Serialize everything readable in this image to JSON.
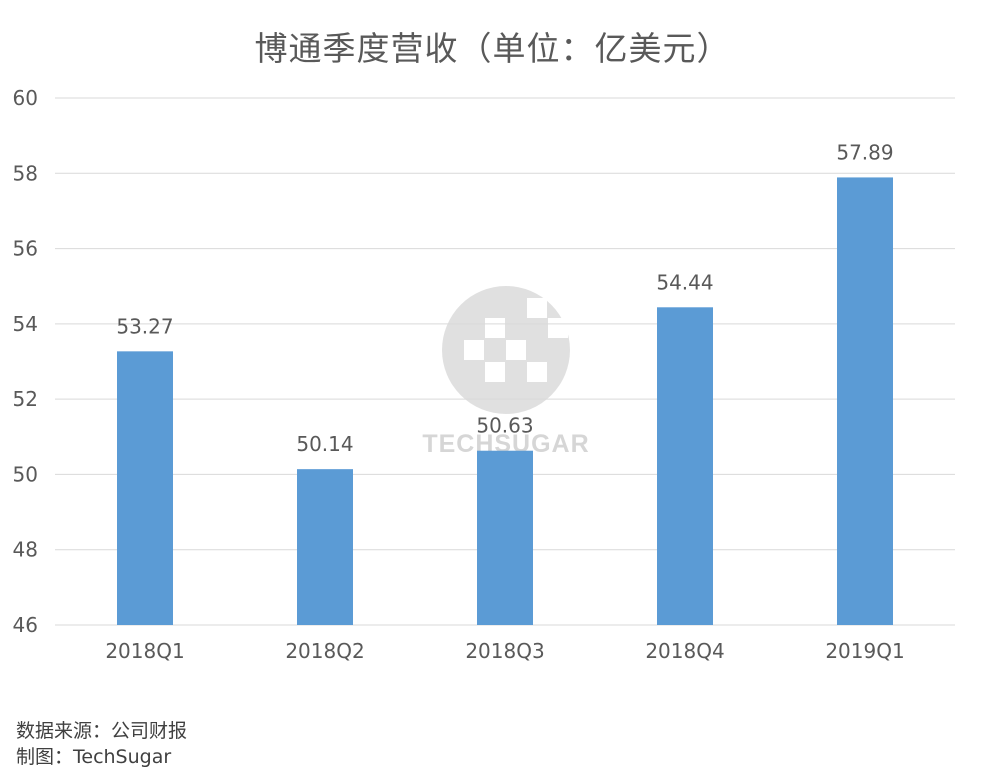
{
  "chart_data": {
    "type": "bar",
    "title": "博通季度营收（单位：亿美元）",
    "categories": [
      "2018Q1",
      "2018Q2",
      "2018Q3",
      "2018Q4",
      "2019Q1"
    ],
    "values": [
      53.27,
      50.14,
      50.63,
      54.44,
      57.89
    ],
    "value_labels": [
      "53.27",
      "50.14",
      "50.63",
      "54.44",
      "57.89"
    ],
    "ylim": [
      46,
      60
    ],
    "yticks": [
      46,
      48,
      50,
      52,
      54,
      56,
      58,
      60
    ],
    "grid": true,
    "bar_color": "#5b9bd5",
    "gridline_color": "#d9d9d9",
    "text_color": "#595959"
  },
  "watermark": {
    "text": "TECHSUGAR"
  },
  "footer": {
    "source": "数据来源：公司财报",
    "credit": "制图：TechSugar"
  }
}
